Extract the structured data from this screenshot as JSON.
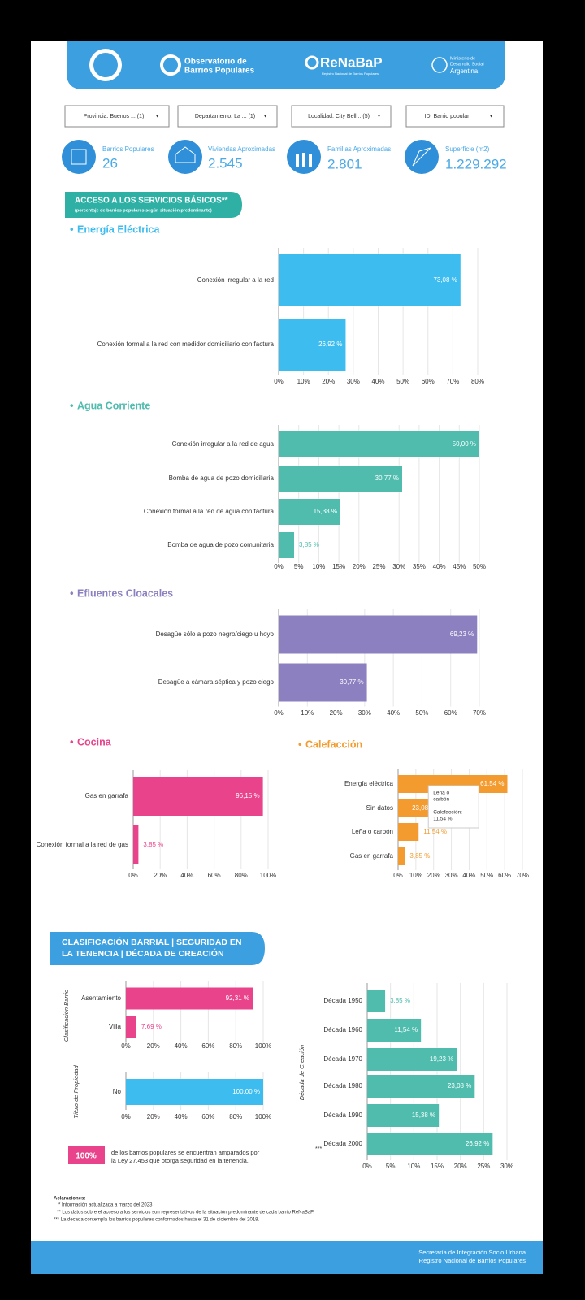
{
  "header": {
    "observatorio": [
      "Observatorio de",
      "Barrios Populares"
    ],
    "renabap": "ReNaBaP",
    "renabap_sub": "Registro Nacional de Barrios Populares",
    "ministerio": [
      "Ministerio de",
      "Desarrollo Social",
      "Argentina"
    ]
  },
  "filters": [
    "Provincia: Buenos ... (1)",
    "Departamento: La ... (1)",
    "Localidad: City Bell... (5)",
    "ID_Barrio popular"
  ],
  "kpis": [
    {
      "label": "Barrios Populares",
      "value": "26"
    },
    {
      "label": "Viviendas Aproximadas",
      "value": "2.545"
    },
    {
      "label": "Familias Aproximadas",
      "value": "2.801"
    },
    {
      "label": "Superficie (m2)",
      "value": "1.229.292"
    }
  ],
  "section1": {
    "title": "ACCESO A LOS SERVICIOS BÁSICOS**",
    "subtitle": "(porcentaje de barrios populares según situación predominante)"
  },
  "section2": {
    "title": [
      "CLASIFICACIÓN BARRIAL |  SEGURIDAD EN",
      "LA TENENCIA  |  DÉCADA DE CREACIÓN"
    ]
  },
  "chart_data": [
    {
      "type": "barh",
      "title": "Energía Eléctrica",
      "color": "#3dbcef",
      "categories": [
        "Conexión irregular a la red",
        "Conexión formal a la red con medidor domiciliario con factura"
      ],
      "values": [
        73.08,
        26.92
      ],
      "value_labels": [
        "73,08 %",
        "26,92 %"
      ],
      "xlim": [
        0,
        80
      ],
      "xticks": [
        {
          "value": 0,
          "label": "0%"
        },
        {
          "value": 10,
          "label": "10%"
        },
        {
          "value": 20,
          "label": "20%"
        },
        {
          "value": 30,
          "label": "30%"
        },
        {
          "value": 40,
          "label": "40%"
        },
        {
          "value": 50,
          "label": "50%"
        },
        {
          "value": 60,
          "label": "60%"
        },
        {
          "value": 70,
          "label": "70%"
        },
        {
          "value": 80,
          "label": "80%"
        }
      ],
      "grid": true
    },
    {
      "type": "barh",
      "title": "Agua Corriente",
      "color": "#4fbcae",
      "categories": [
        "Conexión irregular a la red de agua",
        "Bomba de agua de pozo domiciliaria",
        "Conexión formal a la red de agua con factura",
        "Bomba de agua de pozo comunitaria"
      ],
      "values": [
        50.0,
        30.77,
        15.38,
        3.85
      ],
      "value_labels": [
        "50,00 %",
        "30,77 %",
        "15,38 %",
        "3,85 %"
      ],
      "xlim": [
        0,
        50
      ],
      "xticks": [
        {
          "value": 0,
          "label": "0%"
        },
        {
          "value": 5,
          "label": "5%"
        },
        {
          "value": 10,
          "label": "10%"
        },
        {
          "value": 15,
          "label": "15%"
        },
        {
          "value": 20,
          "label": "20%"
        },
        {
          "value": 25,
          "label": "25%"
        },
        {
          "value": 30,
          "label": "30%"
        },
        {
          "value": 35,
          "label": "35%"
        },
        {
          "value": 40,
          "label": "40%"
        },
        {
          "value": 45,
          "label": "45%"
        },
        {
          "value": 50,
          "label": "50%"
        }
      ],
      "grid": true
    },
    {
      "type": "barh",
      "title": "Efluentes Cloacales",
      "color": "#8d80c0",
      "categories": [
        "Desagüe sólo a pozo negro/ciego u hoyo",
        "Desagüe a cámara séptica y pozo ciego"
      ],
      "values": [
        69.23,
        30.77
      ],
      "value_labels": [
        "69,23 %",
        "30,77 %"
      ],
      "xlim": [
        0,
        70
      ],
      "xticks": [
        {
          "value": 0,
          "label": "0%"
        },
        {
          "value": 10,
          "label": "10%"
        },
        {
          "value": 20,
          "label": "20%"
        },
        {
          "value": 30,
          "label": "30%"
        },
        {
          "value": 40,
          "label": "40%"
        },
        {
          "value": 50,
          "label": "50%"
        },
        {
          "value": 60,
          "label": "60%"
        },
        {
          "value": 70,
          "label": "70%"
        }
      ],
      "grid": true
    },
    {
      "type": "barh",
      "title": "Cocina",
      "color": "#e9438b",
      "categories": [
        "Gas en garrafa",
        "Conexión formal a la red de gas"
      ],
      "values": [
        96.15,
        3.85
      ],
      "value_labels": [
        "96,15 %",
        "3,85 %"
      ],
      "xlim": [
        0,
        100
      ],
      "xticks": [
        {
          "value": 0,
          "label": "0%"
        },
        {
          "value": 20,
          "label": "20%"
        },
        {
          "value": 40,
          "label": "40%"
        },
        {
          "value": 60,
          "label": "60%"
        },
        {
          "value": 80,
          "label": "80%"
        },
        {
          "value": 100,
          "label": "100%"
        }
      ],
      "grid": true
    },
    {
      "type": "barh",
      "title": "Calefacción",
      "color": "#f39b2f",
      "categories": [
        "Energía eléctrica",
        "Sin datos",
        "Leña o carbón",
        "Gas en garrafa"
      ],
      "values": [
        61.54,
        23.08,
        11.54,
        3.85
      ],
      "value_labels": [
        "61,54 %",
        "23,08 %",
        "11,54 %",
        "3,85 %"
      ],
      "xlim": [
        0,
        70
      ],
      "xticks": [
        {
          "value": 0,
          "label": "0%"
        },
        {
          "value": 10,
          "label": "10%"
        },
        {
          "value": 20,
          "label": "20%"
        },
        {
          "value": 30,
          "label": "30%"
        },
        {
          "value": 40,
          "label": "40%"
        },
        {
          "value": 50,
          "label": "50%"
        },
        {
          "value": 60,
          "label": "60%"
        },
        {
          "value": 70,
          "label": "70%"
        }
      ],
      "grid": true,
      "tooltip": {
        "title": [
          "Leña o",
          "carbón"
        ],
        "lines": [
          "Calefacción:",
          "11,54 %"
        ]
      }
    },
    {
      "type": "barh",
      "y_label": "Clasificación Barrio",
      "color": "#e9438b",
      "categories": [
        "Asentamiento",
        "Villa"
      ],
      "values": [
        92.31,
        7.69
      ],
      "value_labels": [
        "92,31 %",
        "7,69 %"
      ],
      "xlim": [
        0,
        100
      ],
      "xticks": [
        {
          "value": 0,
          "label": "0%"
        },
        {
          "value": 20,
          "label": "20%"
        },
        {
          "value": 40,
          "label": "40%"
        },
        {
          "value": 60,
          "label": "60%"
        },
        {
          "value": 80,
          "label": "80%"
        },
        {
          "value": 100,
          "label": "100%"
        }
      ],
      "grid": true
    },
    {
      "type": "barh",
      "y_label": "Título de Propiedad",
      "color": "#3dbcef",
      "categories": [
        "No"
      ],
      "values": [
        100.0
      ],
      "value_labels": [
        "100,00 %"
      ],
      "xlim": [
        0,
        100
      ],
      "xticks": [
        {
          "value": 0,
          "label": "0%"
        },
        {
          "value": 20,
          "label": "20%"
        },
        {
          "value": 40,
          "label": "40%"
        },
        {
          "value": 60,
          "label": "60%"
        },
        {
          "value": 80,
          "label": "80%"
        },
        {
          "value": 100,
          "label": "100%"
        }
      ],
      "grid": true
    },
    {
      "type": "barh",
      "y_label": "Década de Creación",
      "annotation": "***",
      "color": "#4fbcae",
      "categories": [
        "Década 1950",
        "Década 1960",
        "Década 1970",
        "Década 1980",
        "Década 1990",
        "Década 2000"
      ],
      "values": [
        3.85,
        11.54,
        19.23,
        23.08,
        15.38,
        26.92
      ],
      "value_labels": [
        "3,85 %",
        "11,54 %",
        "19,23 %",
        "23,08 %",
        "15,38 %",
        "26,92 %"
      ],
      "xlim": [
        0,
        30
      ],
      "xticks": [
        {
          "value": 0,
          "label": "0%"
        },
        {
          "value": 5,
          "label": "5%"
        },
        {
          "value": 10,
          "label": "10%"
        },
        {
          "value": 15,
          "label": "15%"
        },
        {
          "value": 20,
          "label": "20%"
        },
        {
          "value": 25,
          "label": "25%"
        },
        {
          "value": 30,
          "label": "30%"
        }
      ],
      "grid": true
    }
  ],
  "tenure_note": {
    "badge": "100%",
    "text": [
      "de los barrios populares se encuentran amparados por",
      "la Ley 27.453 que otorga seguridad en la tenencia."
    ]
  },
  "notes": {
    "title": "Aclaraciones:",
    "lines": [
      "* Información actualizada a marzo del 2023",
      "** Los datos sobre el acceso a los servicios son representativos de la situación predominante de cada barrio ReNaBaP.",
      "*** La decada contempla los barrios populares conformados hasta el 31 de diciembre del 2018."
    ]
  },
  "footer": [
    "Secretaría de Integración Socio Urbana",
    "Registro Nacional de Barrios Populares"
  ]
}
